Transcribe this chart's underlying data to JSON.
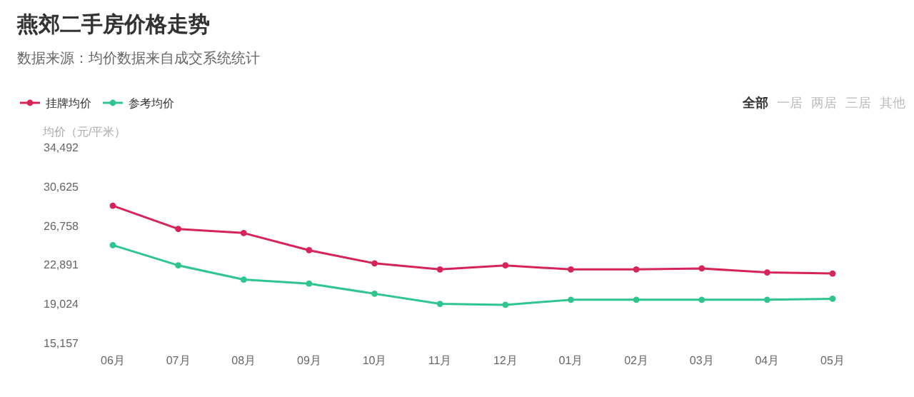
{
  "chart_data": {
    "type": "line",
    "title": "燕郊二手房价格走势",
    "subtitle": "数据来源：均价数据来自成交系统统计",
    "ylabel": "均价（元/平米）",
    "annotations": [
      "全部",
      "一居",
      "两居",
      "三居",
      "其他"
    ],
    "categories": [
      "06月",
      "07月",
      "08月",
      "09月",
      "10月",
      "11月",
      "12月",
      "01月",
      "02月",
      "03月",
      "04月",
      "05月"
    ],
    "series": [
      {
        "name": "挂牌均价",
        "color": "#d6245a",
        "values": [
          28700,
          26400,
          26000,
          24300,
          23000,
          22400,
          22800,
          22400,
          22400,
          22500,
          22100,
          22000
        ]
      },
      {
        "name": "参考均价",
        "color": "#2ec58e",
        "values": [
          24800,
          22800,
          21400,
          21000,
          20000,
          19000,
          18900,
          19400,
          19400,
          19400,
          19400,
          19500
        ]
      }
    ],
    "ylim": [
      15157,
      34492
    ],
    "yticks": [
      {
        "value": 15157,
        "label": "15,157"
      },
      {
        "value": 19024,
        "label": "19,024"
      },
      {
        "value": 22891,
        "label": "22,891"
      },
      {
        "value": 26758,
        "label": "26,758"
      },
      {
        "value": 30625,
        "label": "30,625"
      },
      {
        "value": 34492,
        "label": "34,492"
      }
    ],
    "grid": false,
    "legend": "top left",
    "marker": "circle",
    "line_style": "solid"
  }
}
